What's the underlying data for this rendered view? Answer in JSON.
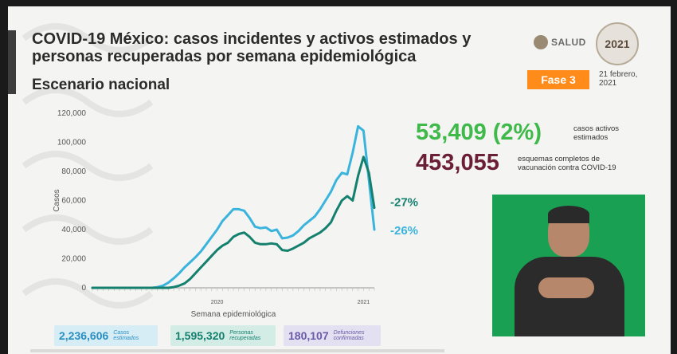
{
  "header": {
    "title": "COVID-19 México: casos incidentes y activos estimados y personas recuperadas por semana epidemiológica",
    "subtitle": "Escenario nacional",
    "logo_text": "SALUD",
    "seal_text": "2021",
    "phase_label": "Fase 3",
    "date_line1": "21 febrero,",
    "date_line2": "2021"
  },
  "kpis": {
    "active_value": "53,409 (2%)",
    "active_label_line1": "casos activos",
    "active_label_line2": "estimados",
    "vacc_value": "453,055",
    "vacc_label_line1": "esquemas completos de",
    "vacc_label_line2": "vacunación contra COVID-19"
  },
  "stats": [
    {
      "value": "2,236,606",
      "label_line1": "Casos",
      "label_line2": "estimados"
    },
    {
      "value": "1,595,320",
      "label_line1": "Personas",
      "label_line2": "recuperadas"
    },
    {
      "value": "180,107",
      "label_line1": "Defunciones",
      "label_line2": "confirmadas"
    }
  ],
  "colors": {
    "estimated": "#3ab4dc",
    "recovered": "#14806e",
    "active_kpi": "#3eb94a",
    "vacc_kpi": "#6b1f36",
    "phase": "#ff8c1a"
  },
  "chart_data": {
    "type": "line",
    "ylabel": "Casos",
    "xlabel": "Semana epidemiológica",
    "ylim": [
      0,
      120000
    ],
    "yticks": [
      0,
      20000,
      40000,
      60000,
      80000,
      100000,
      120000
    ],
    "ytick_labels": [
      "0",
      "20,000",
      "40,000",
      "60,000",
      "80,000",
      "100,000",
      "120,000"
    ],
    "year_labels": [
      {
        "label": "2020",
        "week_index": 23
      },
      {
        "label": "2021",
        "week_index": 50
      }
    ],
    "grid": false,
    "series": [
      {
        "name": "Casos estimados",
        "end_label": "-26%",
        "values": [
          0,
          0,
          0,
          0,
          0,
          0,
          0,
          0,
          0,
          0,
          0,
          0,
          500,
          1500,
          3500,
          6500,
          10000,
          14000,
          17500,
          21000,
          25000,
          30000,
          35000,
          40000,
          46000,
          50000,
          54000,
          54000,
          53000,
          48000,
          42000,
          41000,
          41500,
          39000,
          40000,
          34000,
          34500,
          36000,
          39000,
          43000,
          46000,
          49000,
          54000,
          60000,
          66000,
          74000,
          79000,
          78000,
          93000,
          111000,
          108000,
          74000,
          40000
        ]
      },
      {
        "name": "Personas recuperadas",
        "end_label": "-27%",
        "values": [
          0,
          0,
          0,
          0,
          0,
          0,
          0,
          0,
          0,
          0,
          0,
          0,
          0,
          0,
          0,
          500,
          1500,
          3000,
          6000,
          10000,
          14000,
          18000,
          22000,
          26000,
          29000,
          31000,
          35000,
          37000,
          38000,
          35000,
          31000,
          30000,
          30000,
          30500,
          30000,
          26000,
          25500,
          27000,
          29000,
          31000,
          34000,
          36000,
          38000,
          41000,
          45000,
          53000,
          60000,
          63000,
          60000,
          77000,
          90000,
          79000,
          55000
        ]
      }
    ]
  }
}
